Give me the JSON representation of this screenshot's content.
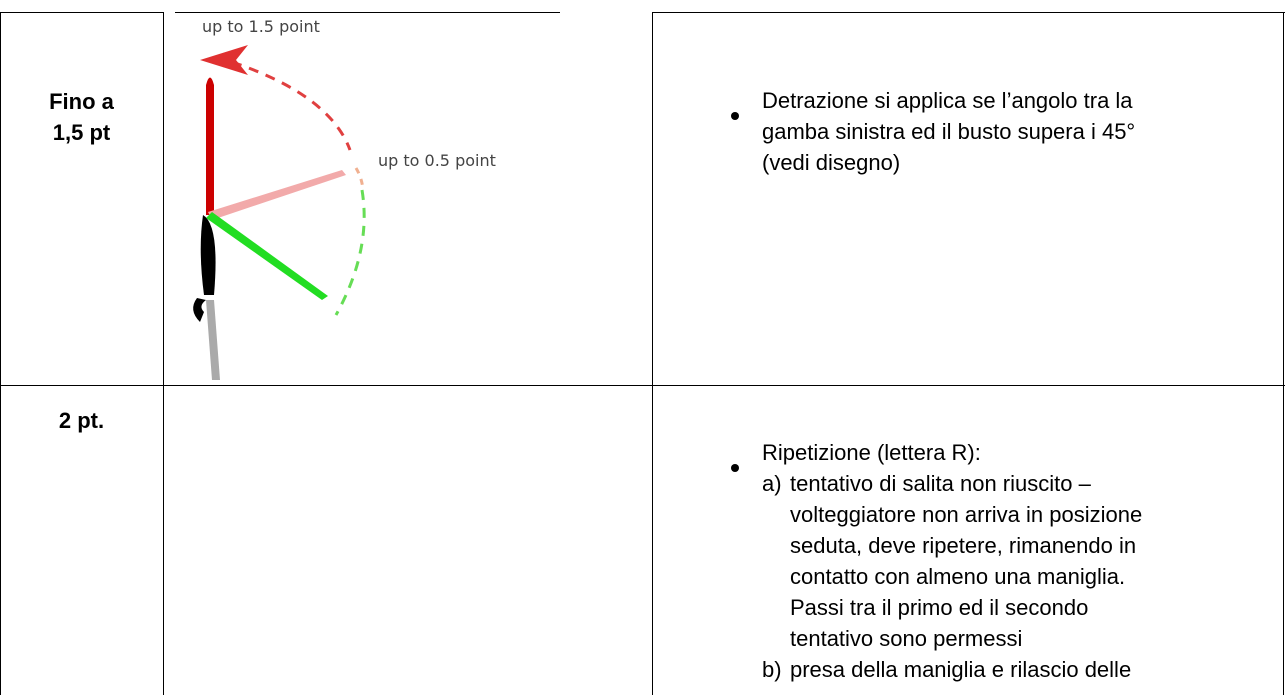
{
  "table": {
    "rows": [
      {
        "points": [
          "Fino a",
          "1,5 pt"
        ],
        "figure_labels": [
          "up to 1.5 point",
          "up to 0.5 point"
        ],
        "description": {
          "bullet": [
            "Detrazione si applica se l’angolo tra la",
            "gamba sinistra ed il busto supera i 45°",
            "(vedi disegno)"
          ]
        }
      },
      {
        "points": [
          "2 pt."
        ],
        "description": {
          "bullet": [
            "Ripetizione (lettera R):"
          ],
          "items": [
            {
              "marker": "a)",
              "lines": [
                "tentativo di salita non riuscito –",
                "volteggiatore non arriva in posizione",
                "seduta, deve ripetere, rimanendo in",
                "contatto con almeno una maniglia.",
                "Passi tra il primo ed il secondo",
                "tentativo sono permessi"
              ]
            },
            {
              "marker": "b)",
              "lines": [
                "presa della maniglia e rilascio delle"
              ]
            }
          ]
        }
      }
    ]
  }
}
